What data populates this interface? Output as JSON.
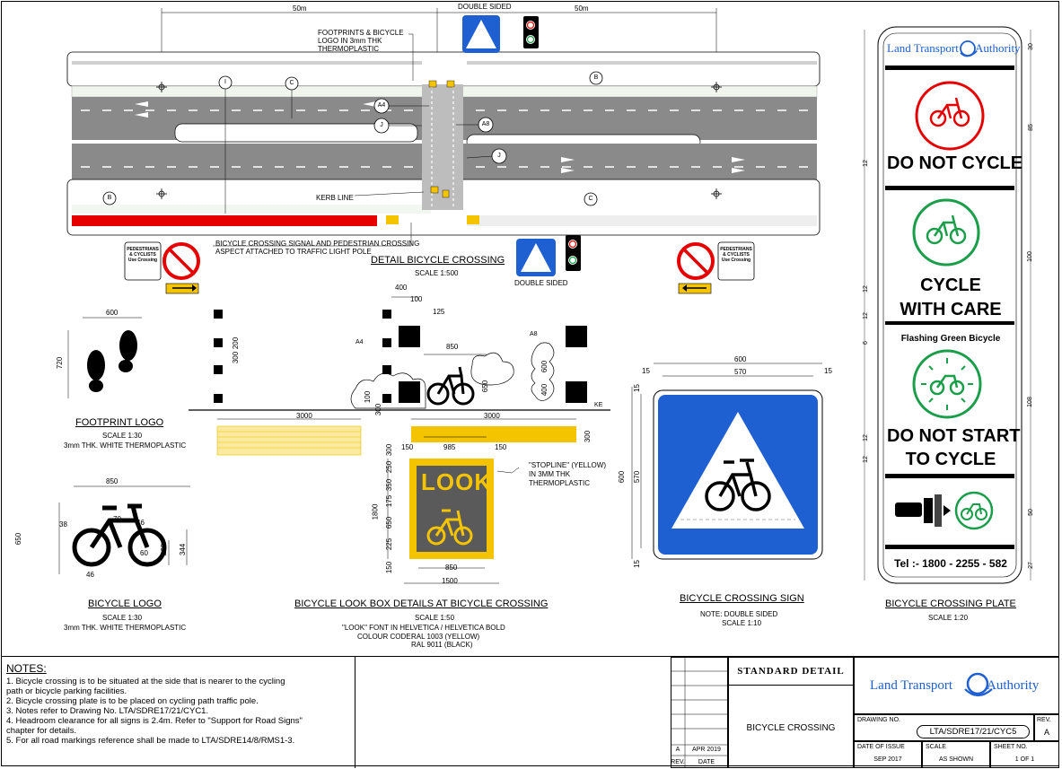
{
  "detail": {
    "top_dim_left": "50m",
    "top_dim_right": "50m",
    "double_sided_top": "DOUBLE SIDED",
    "double_sided_bottom": "DOUBLE SIDED",
    "footprints_note": [
      "FOOTPRINTS & BICYCLE",
      "LOGO IN 3mm THK",
      "THERMOPLASTIC"
    ],
    "kerb_line": "KERB LINE",
    "signal_note": [
      "BICYCLE CROSSING SIGNAL AND PEDESTRIAN CROSSING",
      "ASPECT ATTACHED TO TRAFFIC LIGHT POLE"
    ],
    "title": "DETAIL BICYCLE CROSSING",
    "scale": "SCALE 1:500",
    "callouts": {
      "I": "I",
      "C1": "C",
      "B1": "B",
      "A4": "A4",
      "J1": "J",
      "A8": "A8",
      "J2": "J",
      "B2": "B",
      "C2": "C"
    },
    "ped_sign": [
      "PEDESTRIANS",
      "& CYCLISTS",
      "Use Crossing"
    ]
  },
  "footprint": {
    "dim_w": "600",
    "dim_h": "720",
    "title": "FOOTPRINT LOGO",
    "scale": "SCALE 1:30",
    "note": "3mm THK. WHITE THERMOPLASTIC"
  },
  "bicycle_logo": {
    "dim_w": "850",
    "dim_h": "650",
    "dim_38": "38",
    "dim_70": "70",
    "dim_46a": "46",
    "dim_60": "60",
    "dim_46b": "46",
    "dim_268": "268",
    "dim_344": "344",
    "title": "BICYCLE LOGO",
    "scale": "SCALE 1:30",
    "note": "3mm THK. WHITE THERMOPLASTIC"
  },
  "lookbox": {
    "dims": {
      "d400": "400",
      "d100a": "100",
      "d125": "125",
      "d300a": "300",
      "d200": "200",
      "d850a": "850",
      "d650": "650",
      "d100b": "100",
      "d300b": "300",
      "d600": "600",
      "d400b": "400",
      "d3000a": "3000",
      "d3000b": "3000",
      "d300c": "300",
      "d300d": "300",
      "d150a": "150",
      "d985": "985",
      "d150b": "150",
      "d250": "250",
      "d350": "350",
      "d175": "175",
      "d650b": "650",
      "d225": "225",
      "d150c": "150",
      "d1800": "1800",
      "d850b": "850",
      "d1500": "1500"
    },
    "a4": "A4",
    "a8": "A8",
    "ke": "KE",
    "look_text": "LOOK",
    "stopline_note": [
      "\"STOPLINE\" (YELLOW)",
      "IN 3MM THK",
      "THERMOPLASTIC"
    ],
    "title": "BICYCLE LOOK BOX DETAILS AT BICYCLE CROSSING",
    "scale": "SCALE 1:50",
    "font_note": "\"LOOK\" FONT IN HELVETICA / HELVETICA BOLD",
    "colour_label": "COLOUR CODE:",
    "colour_1": "RAL 1003 (YELLOW)",
    "colour_2": "RAL 9011 (BLACK)"
  },
  "crossing_sign": {
    "dim_600w": "600",
    "dim_570w": "570",
    "dim_15a": "15",
    "dim_15b": "15",
    "dim_600h": "600",
    "dim_570h": "570",
    "dim_15c": "15",
    "dim_15d": "15",
    "title": "BICYCLE CROSSING SIGN",
    "note": "NOTE: DOUBLE SIDED",
    "scale": "SCALE 1:10"
  },
  "plate": {
    "logo_a": "Land Transport",
    "logo_b": "Authority",
    "do_not_cycle": "DO NOT CYCLE",
    "cycle_with_care_1": "CYCLE",
    "cycle_with_care_2": "WITH CARE",
    "flashing": "Flashing Green Bicycle",
    "do_not_start_1": "DO NOT START",
    "do_not_start_2": "TO CYCLE",
    "tel": "Tel :- 1800 - 2255 - 582",
    "right_dims": [
      "30",
      "85",
      "100",
      "108",
      "50",
      "27"
    ],
    "left_dims": [
      "12",
      "12",
      "12",
      "6",
      "12",
      "12"
    ],
    "title": "BICYCLE CROSSING PLATE",
    "scale": "SCALE 1:20"
  },
  "notes": {
    "heading": "NOTES:",
    "lines": [
      "1. Bicycle crossing is to be situated at the side that is nearer to the cycling",
      "    path or bicycle parking facilities.",
      "2. Bicycle crossing plate is to be placed on cycling path traffic pole.",
      "3. Notes refer to Drawing No. LTA/SDRE17/21/CYC1.",
      "4. Headroom clearance for all signs is 2.4m. Refer to \"Support for Road Signs\"",
      "    chapter for details.",
      "5. For all road markings reference shall be made to LTA/SDRE14/8/RMS1-3."
    ]
  },
  "titleblock": {
    "rev_a": "A",
    "rev_date": "APR 2019",
    "rev_label": "REV.",
    "date_label": "DATE",
    "standard_detail": "STANDARD   DETAIL",
    "drawing_title": "BICYCLE CROSSING",
    "logo_a": "Land Transport",
    "logo_b": "Authority",
    "drawing_no_label": "DRAWING NO.",
    "drawing_no": "LTA/SDRE17/21/CYC5",
    "rev_col_label": "REV.",
    "rev_col_value": "A",
    "issue_label": "DATE OF ISSUE",
    "issue_value": "SEP 2017",
    "scale_label": "SCALE",
    "scale_value": "AS SHOWN",
    "sheet_label": "SHEET NO.",
    "sheet_value": "1 OF 1"
  },
  "colors": {
    "yellow": "#f5c400",
    "red": "#e60000",
    "green": "#1a9e4a",
    "blue": "#1e5fd2",
    "road": "#8a8a8a"
  }
}
